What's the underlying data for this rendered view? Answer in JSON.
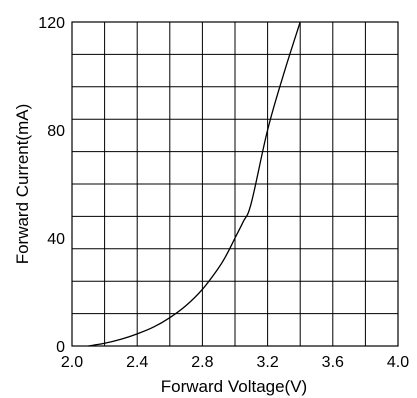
{
  "chart_data": {
    "type": "line",
    "title": "",
    "xlabel": "Forward Voltage(V)",
    "ylabel": "Forward Current(mA)",
    "xlim": [
      2.0,
      4.0
    ],
    "ylim": [
      0,
      120
    ],
    "x_ticks": [
      2.0,
      2.4,
      2.8,
      3.2,
      3.6,
      4.0
    ],
    "x_tick_labels": [
      "2.0",
      "2.4",
      "2.8",
      "3.2",
      "3.6",
      "4.0"
    ],
    "y_ticks": [
      0,
      40,
      80,
      120
    ],
    "y_tick_labels": [
      "0",
      "40",
      "80",
      "120"
    ],
    "grid": true,
    "grid_x_count": 10,
    "grid_y_count": 10,
    "legend": "none",
    "colors": {
      "line": "#000000",
      "grid": "#000000",
      "background": "#ffffff"
    },
    "series": [
      {
        "values_x": [
          2.1,
          2.2,
          2.3,
          2.4,
          2.5,
          2.6,
          2.7,
          2.8,
          2.9,
          2.95,
          3.0,
          3.05,
          3.1,
          3.2,
          3.3,
          3.4
        ],
        "values_y": [
          0,
          1,
          2.5,
          4.5,
          7,
          10.5,
          15,
          21,
          29,
          34,
          40,
          46,
          53,
          80,
          101,
          120
        ]
      }
    ]
  }
}
